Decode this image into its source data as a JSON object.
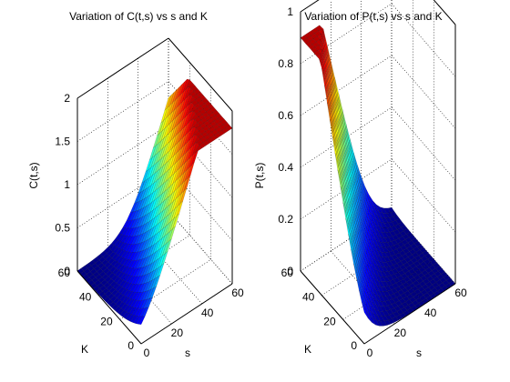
{
  "chart_data": [
    {
      "type": "surface",
      "title": "Variation of C(t,s) vs s and K",
      "xlabel": "s",
      "ylabel": "K",
      "zlabel": "C(t,s)",
      "xlim": [
        0,
        60
      ],
      "ylim": [
        0,
        60
      ],
      "zlim": [
        0,
        2
      ],
      "xticks": [
        "0",
        "20",
        "40",
        "60"
      ],
      "yticks": [
        "0",
        "20",
        "40",
        "60"
      ],
      "zticks": [
        "0",
        "0.5",
        "1",
        "1.5",
        "2"
      ],
      "grid": true,
      "colormap": "jet",
      "sample_points": [
        {
          "s": 0,
          "K": 0,
          "value": 0
        },
        {
          "s": 0,
          "K": 60,
          "value": 0
        },
        {
          "s": 60,
          "K": 0,
          "value": 1.8
        },
        {
          "s": 60,
          "K": 60,
          "value": 0.02
        },
        {
          "s": 30,
          "K": 0,
          "value": 0.9
        },
        {
          "s": 30,
          "K": 30,
          "value": 0.2
        }
      ]
    },
    {
      "type": "surface",
      "title": "Variation of P(t,s) vs s and K",
      "xlabel": "s",
      "ylabel": "K",
      "zlabel": "P(t,s)",
      "xlim": [
        0,
        60
      ],
      "ylim": [
        0,
        60
      ],
      "zlim": [
        0,
        1
      ],
      "xticks": [
        "0",
        "20",
        "40",
        "60"
      ],
      "yticks": [
        "0",
        "20",
        "40",
        "60"
      ],
      "zticks": [
        "0",
        "0.2",
        "0.4",
        "0.6",
        "0.8",
        "1"
      ],
      "grid": true,
      "colormap": "jet",
      "sample_points": [
        {
          "s": 0,
          "K": 0,
          "value": 0
        },
        {
          "s": 60,
          "K": 0,
          "value": 0
        },
        {
          "s": 0,
          "K": 60,
          "value": 0.9
        },
        {
          "s": 60,
          "K": 60,
          "value": 0
        },
        {
          "s": 0,
          "K": 30,
          "value": 0.4
        }
      ]
    }
  ]
}
